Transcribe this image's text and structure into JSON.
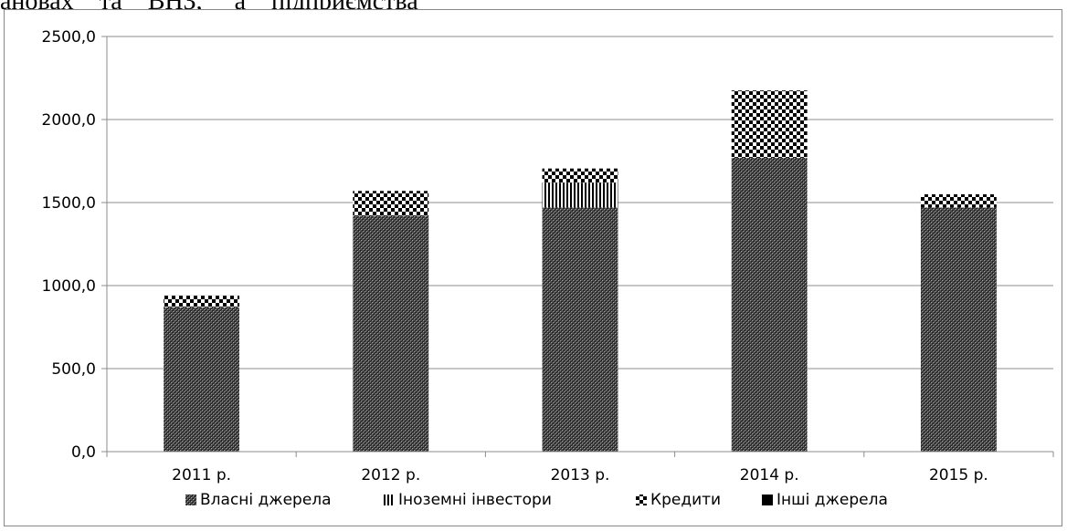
{
  "page": {
    "top_text": "ановах    та    ВНЗ,     а    підприємства"
  },
  "chart_data": {
    "type": "bar",
    "stacked": true,
    "categories": [
      "2011 р.",
      "2012 р.",
      "2013 р.",
      "2014 р.",
      "2015 р."
    ],
    "series": [
      {
        "name": "Власні джерела",
        "values": [
          870,
          1420,
          1470,
          1770,
          1470
        ],
        "pattern": "fine-crosshatch"
      },
      {
        "name": "Іноземні інвестори",
        "values": [
          0,
          0,
          150,
          0,
          0
        ],
        "pattern": "vertical-lines"
      },
      {
        "name": "Кредити",
        "values": [
          70,
          150,
          85,
          405,
          80
        ],
        "pattern": "checkerboard"
      },
      {
        "name": "Інші джерела",
        "values": [
          0,
          0,
          0,
          0,
          0
        ],
        "pattern": "solid-black"
      }
    ],
    "yticks": [
      "0,0",
      "500,0",
      "1000,0",
      "1500,0",
      "2000,0",
      "2500,0"
    ],
    "ylim": [
      0,
      2500
    ],
    "grid": true,
    "legend_position": "bottom",
    "title": "",
    "xlabel": "",
    "ylabel": ""
  }
}
